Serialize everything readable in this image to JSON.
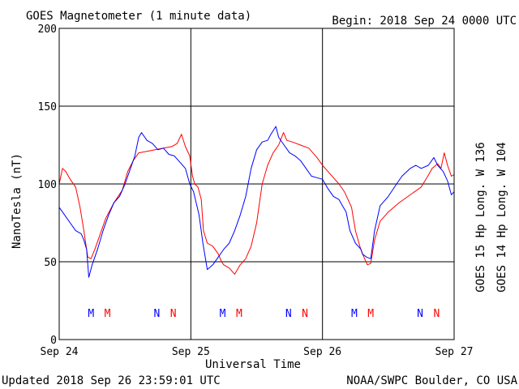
{
  "title": "GOES Magnetometer (1 minute data)",
  "begin": "Begin:  2018 Sep 24 0000 UTC",
  "updated": "Updated 2018 Sep 26 23:59:01 UTC",
  "credit": "NOAA/SWPC Boulder, CO USA",
  "colors": {
    "goes15": "#ff0000",
    "goes14": "#0000ff",
    "axis": "#000000"
  },
  "chart_data": {
    "type": "line",
    "xlabel": "Universal Time",
    "ylabel": "NanoTesla (nT)",
    "xlim": [
      0,
      72
    ],
    "ylim": [
      0,
      200
    ],
    "x_ticks": [
      {
        "value": 0,
        "label": "Sep 24"
      },
      {
        "value": 24,
        "label": "Sep 25"
      },
      {
        "value": 48,
        "label": "Sep 26"
      },
      {
        "value": 72,
        "label": "Sep 27"
      }
    ],
    "y_ticks": [
      0,
      50,
      100,
      150,
      200
    ],
    "grid": true,
    "legend_position": "right-vertical",
    "series": [
      {
        "name": "GOES 15 Hp  Long. W 136",
        "color": "#ff0000",
        "points": [
          [
            0,
            100
          ],
          [
            0.6,
            110
          ],
          [
            1.2,
            108
          ],
          [
            2,
            103
          ],
          [
            3,
            98
          ],
          [
            3.8,
            85
          ],
          [
            4.5,
            70
          ],
          [
            5.2,
            53
          ],
          [
            5.8,
            52
          ],
          [
            6.5,
            58
          ],
          [
            7.2,
            65
          ],
          [
            8.5,
            78
          ],
          [
            10,
            88
          ],
          [
            11.5,
            96
          ],
          [
            12.5,
            108
          ],
          [
            13.5,
            115
          ],
          [
            14.5,
            120
          ],
          [
            16,
            121
          ],
          [
            17.5,
            122
          ],
          [
            19,
            123
          ],
          [
            20.5,
            124
          ],
          [
            21.5,
            126
          ],
          [
            22.3,
            132
          ],
          [
            23,
            124
          ],
          [
            23.8,
            118
          ],
          [
            24.3,
            105
          ],
          [
            24.7,
            100
          ],
          [
            25.3,
            98
          ],
          [
            25.9,
            90
          ],
          [
            26.3,
            70
          ],
          [
            27,
            62
          ],
          [
            28,
            60
          ],
          [
            29,
            55
          ],
          [
            29.6,
            50
          ],
          [
            30,
            48
          ],
          [
            31,
            46
          ],
          [
            32,
            42
          ],
          [
            33,
            48
          ],
          [
            34,
            52
          ],
          [
            35,
            60
          ],
          [
            36,
            75
          ],
          [
            37,
            100
          ],
          [
            38,
            112
          ],
          [
            39,
            120
          ],
          [
            40,
            125
          ],
          [
            40.9,
            133
          ],
          [
            41.5,
            128
          ],
          [
            42.5,
            127
          ],
          [
            44,
            125
          ],
          [
            45.5,
            123
          ],
          [
            47,
            117
          ],
          [
            48,
            112
          ],
          [
            49,
            108
          ],
          [
            50,
            104
          ],
          [
            51,
            100
          ],
          [
            52,
            95
          ],
          [
            53.3,
            85
          ],
          [
            54,
            70
          ],
          [
            54.8,
            60
          ],
          [
            55.3,
            55
          ],
          [
            56.2,
            48
          ],
          [
            56.8,
            49
          ],
          [
            57.5,
            64
          ],
          [
            58.5,
            76
          ],
          [
            60,
            82
          ],
          [
            62,
            88
          ],
          [
            64,
            93
          ],
          [
            66,
            98
          ],
          [
            67.2,
            105
          ],
          [
            68,
            110
          ],
          [
            69,
            113
          ],
          [
            69.6,
            110
          ],
          [
            70.2,
            120
          ],
          [
            70.8,
            112
          ],
          [
            71.5,
            105
          ],
          [
            72,
            106
          ]
        ]
      },
      {
        "name": "GOES 14 Hp  Long. W 104",
        "color": "#0000ff",
        "points": [
          [
            0,
            85
          ],
          [
            1,
            80
          ],
          [
            2,
            75
          ],
          [
            3,
            70
          ],
          [
            4,
            68
          ],
          [
            4.5,
            64
          ],
          [
            5,
            58
          ],
          [
            5.4,
            40
          ],
          [
            6,
            48
          ],
          [
            7,
            58
          ],
          [
            8,
            70
          ],
          [
            9,
            80
          ],
          [
            10,
            88
          ],
          [
            11,
            92
          ],
          [
            12,
            100
          ],
          [
            13,
            110
          ],
          [
            13.8,
            118
          ],
          [
            14.5,
            130
          ],
          [
            15,
            133
          ],
          [
            16,
            128
          ],
          [
            17,
            126
          ],
          [
            18,
            122
          ],
          [
            19,
            123
          ],
          [
            20,
            119
          ],
          [
            21,
            118
          ],
          [
            22,
            114
          ],
          [
            23,
            110
          ],
          [
            23.8,
            100
          ],
          [
            24.5,
            95
          ],
          [
            25.5,
            80
          ],
          [
            26.2,
            62
          ],
          [
            27,
            45
          ],
          [
            28,
            48
          ],
          [
            29,
            53
          ],
          [
            30,
            58
          ],
          [
            31,
            62
          ],
          [
            32,
            70
          ],
          [
            33,
            80
          ],
          [
            34,
            92
          ],
          [
            35,
            110
          ],
          [
            36,
            122
          ],
          [
            37,
            127
          ],
          [
            38,
            128
          ],
          [
            38.6,
            132
          ],
          [
            39.5,
            137
          ],
          [
            40,
            130
          ],
          [
            41,
            125
          ],
          [
            42,
            120
          ],
          [
            43,
            118
          ],
          [
            44,
            115
          ],
          [
            45,
            110
          ],
          [
            46,
            105
          ],
          [
            47,
            104
          ],
          [
            48,
            103
          ],
          [
            49,
            97
          ],
          [
            50,
            92
          ],
          [
            51,
            90
          ],
          [
            51.8,
            85
          ],
          [
            52.3,
            82
          ],
          [
            53,
            70
          ],
          [
            54,
            62
          ],
          [
            55,
            58
          ],
          [
            55.3,
            55
          ],
          [
            56,
            53
          ],
          [
            56.8,
            52
          ],
          [
            57.5,
            70
          ],
          [
            58.5,
            86
          ],
          [
            60,
            92
          ],
          [
            61.5,
            100
          ],
          [
            62.5,
            105
          ],
          [
            64,
            110
          ],
          [
            65,
            112
          ],
          [
            66,
            110
          ],
          [
            67.3,
            112
          ],
          [
            68.3,
            117
          ],
          [
            69,
            112
          ],
          [
            70,
            108
          ],
          [
            70.8,
            102
          ],
          [
            71.5,
            93
          ],
          [
            72,
            95
          ]
        ]
      }
    ],
    "markers": [
      {
        "x": 5.8,
        "label": "M",
        "color": "#0000ff"
      },
      {
        "x": 8.8,
        "label": "M",
        "color": "#ff0000"
      },
      {
        "x": 17.8,
        "label": "N",
        "color": "#0000ff"
      },
      {
        "x": 20.8,
        "label": "N",
        "color": "#ff0000"
      },
      {
        "x": 29.8,
        "label": "M",
        "color": "#0000ff"
      },
      {
        "x": 32.8,
        "label": "M",
        "color": "#ff0000"
      },
      {
        "x": 41.8,
        "label": "N",
        "color": "#0000ff"
      },
      {
        "x": 44.8,
        "label": "N",
        "color": "#ff0000"
      },
      {
        "x": 53.8,
        "label": "M",
        "color": "#0000ff"
      },
      {
        "x": 56.8,
        "label": "M",
        "color": "#ff0000"
      },
      {
        "x": 65.8,
        "label": "N",
        "color": "#0000ff"
      },
      {
        "x": 68.8,
        "label": "N",
        "color": "#ff0000"
      }
    ]
  }
}
